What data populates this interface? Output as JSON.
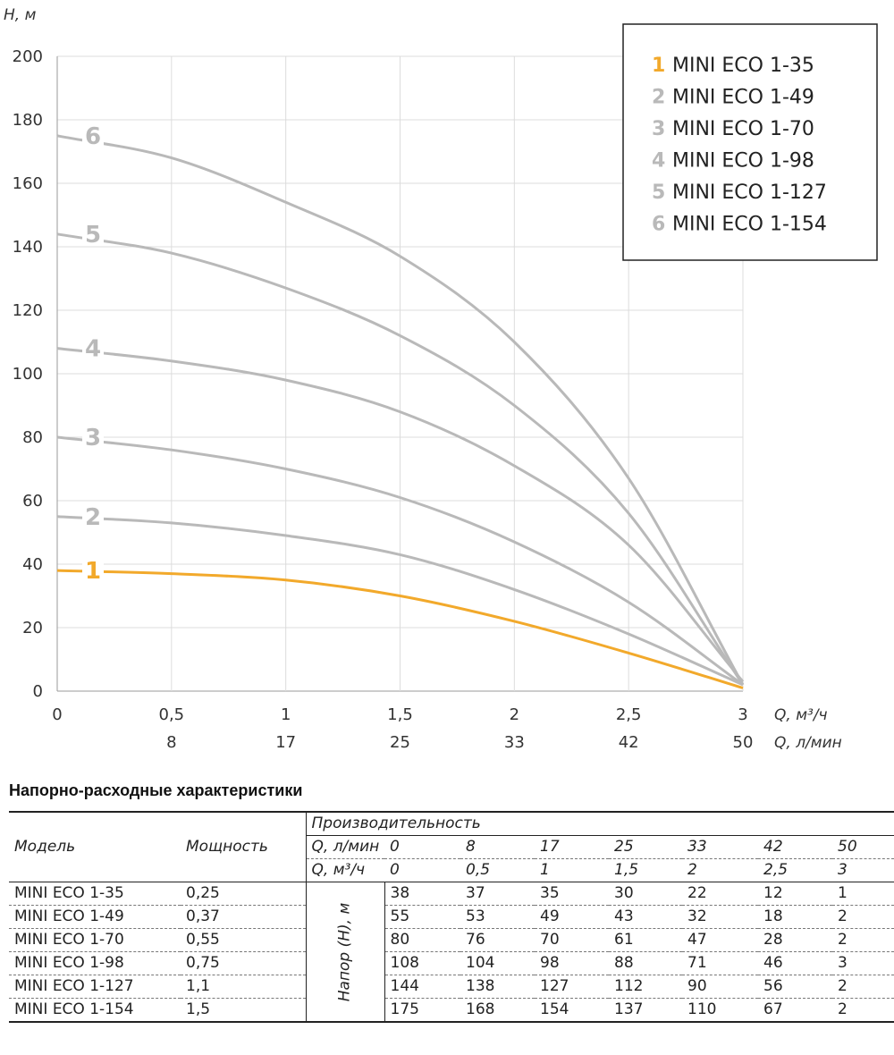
{
  "chart_data": {
    "type": "line",
    "ylabel": "H, м",
    "xlabel": "Q, м³/ч",
    "xlabel2": "Q, л/мин",
    "ylim": [
      0,
      200
    ],
    "yticks": [
      "0",
      "20",
      "40",
      "60",
      "80",
      "100",
      "120",
      "140",
      "160",
      "180",
      "200"
    ],
    "xlim": [
      0,
      3
    ],
    "xticks": [
      "0",
      "0,5",
      "1",
      "1,5",
      "2",
      "2,5",
      "3"
    ],
    "xticks2": [
      "8",
      "17",
      "25",
      "33",
      "42",
      "50"
    ],
    "grid": true,
    "legend_position": "top-right",
    "x": [
      0,
      0.5,
      1,
      1.5,
      2,
      2.5,
      3
    ],
    "series": [
      {
        "name": "MINI ECO 1-35",
        "label": "1",
        "color": "#f2a92b",
        "values": [
          38,
          37,
          35,
          30,
          22,
          12,
          1
        ]
      },
      {
        "name": "MINI ECO 1-49",
        "label": "2",
        "color": "#b9b9b9",
        "values": [
          55,
          53,
          49,
          43,
          32,
          18,
          2
        ]
      },
      {
        "name": "MINI ECO 1-70",
        "label": "3",
        "color": "#b9b9b9",
        "values": [
          80,
          76,
          70,
          61,
          47,
          28,
          2
        ]
      },
      {
        "name": "MINI ECO 1-98",
        "label": "4",
        "color": "#b9b9b9",
        "values": [
          108,
          104,
          98,
          88,
          71,
          46,
          3
        ]
      },
      {
        "name": "MINI ECO 1-127",
        "label": "5",
        "color": "#b9b9b9",
        "values": [
          144,
          138,
          127,
          112,
          90,
          56,
          2
        ]
      },
      {
        "name": "MINI ECO 1-154",
        "label": "6",
        "color": "#b9b9b9",
        "values": [
          175,
          168,
          154,
          137,
          110,
          67,
          2
        ]
      }
    ]
  },
  "table": {
    "title": "Напорно-расходные характеристики",
    "col_model": "Модель",
    "col_power": "Мощность",
    "col_perf": "Производительность",
    "row_q_lmin_label": "Q, л/мин",
    "q_lmin": [
      "0",
      "8",
      "17",
      "25",
      "33",
      "42",
      "50"
    ],
    "row_q_m3h_label": "Q, м³/ч",
    "q_m3h": [
      "0",
      "0,5",
      "1",
      "1,5",
      "2",
      "2,5",
      "3"
    ],
    "head_label": "Напор (Н), м",
    "rows": [
      {
        "model": "MINI ECO 1-35",
        "power": "0,25",
        "values": [
          "38",
          "37",
          "35",
          "30",
          "22",
          "12",
          "1"
        ]
      },
      {
        "model": "MINI ECO 1-49",
        "power": "0,37",
        "values": [
          "55",
          "53",
          "49",
          "43",
          "32",
          "18",
          "2"
        ]
      },
      {
        "model": "MINI ECO 1-70",
        "power": "0,55",
        "values": [
          "80",
          "76",
          "70",
          "61",
          "47",
          "28",
          "2"
        ]
      },
      {
        "model": "MINI ECO 1-98",
        "power": "0,75",
        "values": [
          "108",
          "104",
          "98",
          "88",
          "71",
          "46",
          "3"
        ]
      },
      {
        "model": "MINI ECO 1-127",
        "power": "1,1",
        "values": [
          "144",
          "138",
          "127",
          "112",
          "90",
          "56",
          "2"
        ]
      },
      {
        "model": "MINI ECO 1-154",
        "power": "1,5",
        "values": [
          "175",
          "168",
          "154",
          "137",
          "110",
          "67",
          "2"
        ]
      }
    ]
  }
}
